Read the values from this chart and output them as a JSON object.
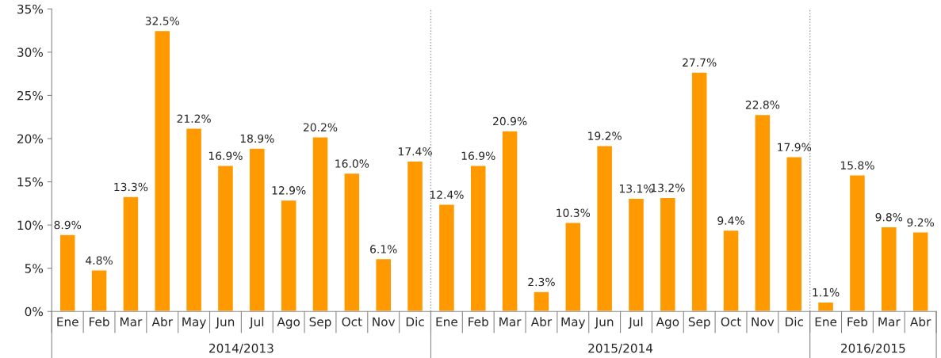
{
  "chart_data": {
    "type": "bar",
    "categories": [
      "Ene",
      "Feb",
      "Mar",
      "Abr",
      "May",
      "Jun",
      "Jul",
      "Ago",
      "Sep",
      "Oct",
      "Nov",
      "Dic",
      "Ene",
      "Feb",
      "Mar",
      "Abr",
      "May",
      "Jun",
      "Jul",
      "Ago",
      "Sep",
      "Oct",
      "Nov",
      "Dic",
      "Ene",
      "Feb",
      "Mar",
      "Abr"
    ],
    "values": [
      8.9,
      4.8,
      13.3,
      32.5,
      21.2,
      16.9,
      18.9,
      12.9,
      20.2,
      16.0,
      6.1,
      17.4,
      12.4,
      16.9,
      20.9,
      2.3,
      10.3,
      19.2,
      13.1,
      13.2,
      27.7,
      9.4,
      22.8,
      17.9,
      1.1,
      15.8,
      9.8,
      9.2
    ],
    "value_labels": [
      "8.9%",
      "4.8%",
      "13.3%",
      "32.5%",
      "21.2%",
      "16.9%",
      "18.9%",
      "12.9%",
      "20.2%",
      "16.0%",
      "6.1%",
      "17.4%",
      "12.4%",
      "16.9%",
      "20.9%",
      "2.3%",
      "10.3%",
      "19.2%",
      "13.1%",
      "13.2%",
      "27.7%",
      "9.4%",
      "22.8%",
      "17.9%",
      "1.1%",
      "15.8%",
      "9.8%",
      "9.2%"
    ],
    "color": "#ff9900",
    "ylim": [
      0,
      35
    ],
    "yticks": [
      {
        "value": 0,
        "label": "0%"
      },
      {
        "value": 5,
        "label": "5%"
      },
      {
        "value": 10,
        "label": "10%"
      },
      {
        "value": 15,
        "label": "15%"
      },
      {
        "value": 20,
        "label": "20%"
      },
      {
        "value": 25,
        "label": "25%"
      },
      {
        "value": 30,
        "label": "30%"
      },
      {
        "value": 35,
        "label": "35%"
      }
    ],
    "annotations": [
      "2014/2013",
      "2015/2014",
      "2016/2015"
    ],
    "grid": false,
    "legend": false
  }
}
